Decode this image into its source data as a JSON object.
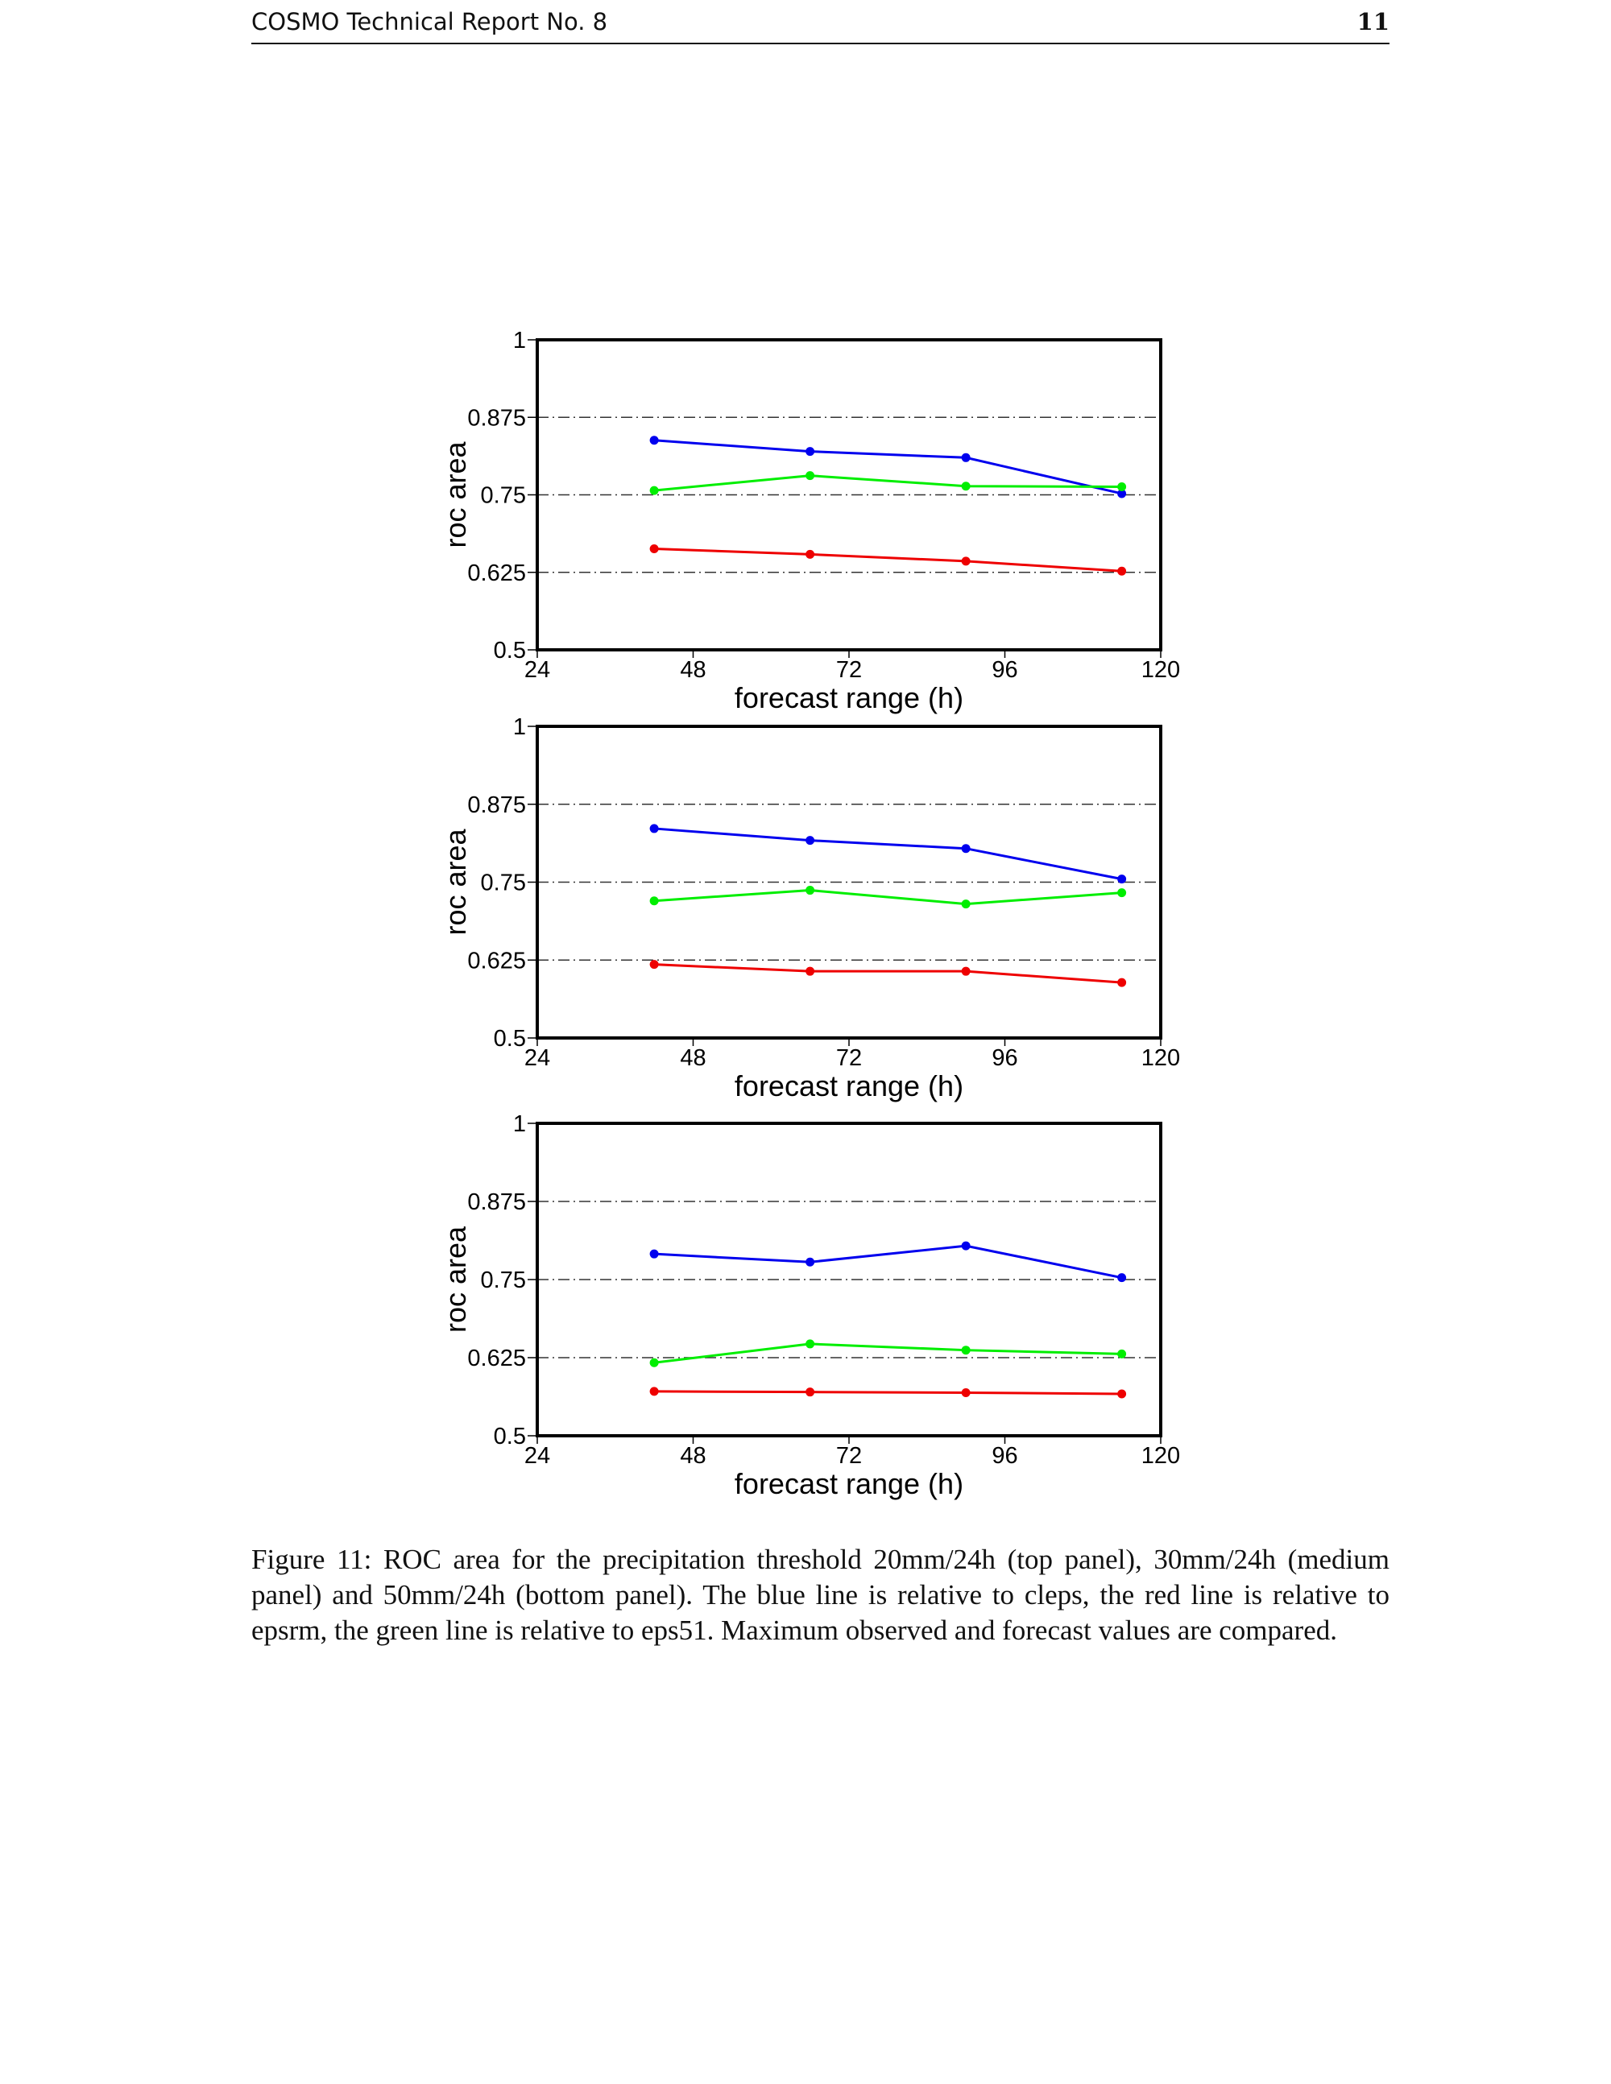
{
  "header": {
    "title": "COSMO Technical Report No. 8",
    "page_number": "11"
  },
  "caption": "Figure 11: ROC area for the precipitation threshold 20mm/24h (top panel), 30mm/24h (medium panel) and 50mm/24h (bottom panel). The blue line is relative to cleps, the red line is relative to epsrm, the green line is relative to eps51. Maximum observed and forecast values are compared.",
  "chart_data": [
    {
      "type": "line",
      "title": "",
      "panel": "top (20mm/24h)",
      "xlabel": "forecast range (h)",
      "ylabel": "roc area",
      "xlim": [
        24,
        120
      ],
      "ylim": [
        0.5,
        1
      ],
      "xticks": [
        "24",
        "48",
        "72",
        "96",
        "120"
      ],
      "yticks": [
        "0.5",
        "0.625",
        "0.75",
        "0.875",
        "1"
      ],
      "grid": "horizontal dash-dot",
      "x": [
        42,
        66,
        90,
        114
      ],
      "series": [
        {
          "name": "cleps",
          "color": "#0000ee",
          "values": [
            0.838,
            0.82,
            0.81,
            0.752
          ]
        },
        {
          "name": "eps51",
          "color": "#00ee00",
          "values": [
            0.757,
            0.781,
            0.764,
            0.763
          ]
        },
        {
          "name": "epsrm",
          "color": "#ee0000",
          "values": [
            0.663,
            0.654,
            0.643,
            0.627
          ]
        }
      ]
    },
    {
      "type": "line",
      "title": "",
      "panel": "medium (30mm/24h)",
      "xlabel": "forecast range (h)",
      "ylabel": "roc area",
      "xlim": [
        24,
        120
      ],
      "ylim": [
        0.5,
        1
      ],
      "xticks": [
        "24",
        "48",
        "72",
        "96",
        "120"
      ],
      "yticks": [
        "0.5",
        "0.625",
        "0.75",
        "0.875",
        "1"
      ],
      "grid": "horizontal dash-dot",
      "x": [
        42,
        66,
        90,
        114
      ],
      "series": [
        {
          "name": "cleps",
          "color": "#0000ee",
          "values": [
            0.836,
            0.817,
            0.804,
            0.755
          ]
        },
        {
          "name": "eps51",
          "color": "#00ee00",
          "values": [
            0.72,
            0.737,
            0.715,
            0.733
          ]
        },
        {
          "name": "epsrm",
          "color": "#ee0000",
          "values": [
            0.618,
            0.607,
            0.607,
            0.589
          ]
        }
      ]
    },
    {
      "type": "line",
      "title": "",
      "panel": "bottom (50mm/24h)",
      "xlabel": "forecast range (h)",
      "ylabel": "roc area",
      "xlim": [
        24,
        120
      ],
      "ylim": [
        0.5,
        1
      ],
      "xticks": [
        "24",
        "48",
        "72",
        "96",
        "120"
      ],
      "yticks": [
        "0.5",
        "0.625",
        "0.75",
        "0.875",
        "1"
      ],
      "grid": "horizontal dash-dot",
      "x": [
        42,
        66,
        90,
        114
      ],
      "series": [
        {
          "name": "cleps",
          "color": "#0000ee",
          "values": [
            0.791,
            0.778,
            0.804,
            0.753
          ]
        },
        {
          "name": "eps51",
          "color": "#00ee00",
          "values": [
            0.617,
            0.647,
            0.637,
            0.631
          ]
        },
        {
          "name": "epsrm",
          "color": "#ee0000",
          "values": [
            0.571,
            0.57,
            0.569,
            0.567
          ]
        }
      ]
    }
  ]
}
